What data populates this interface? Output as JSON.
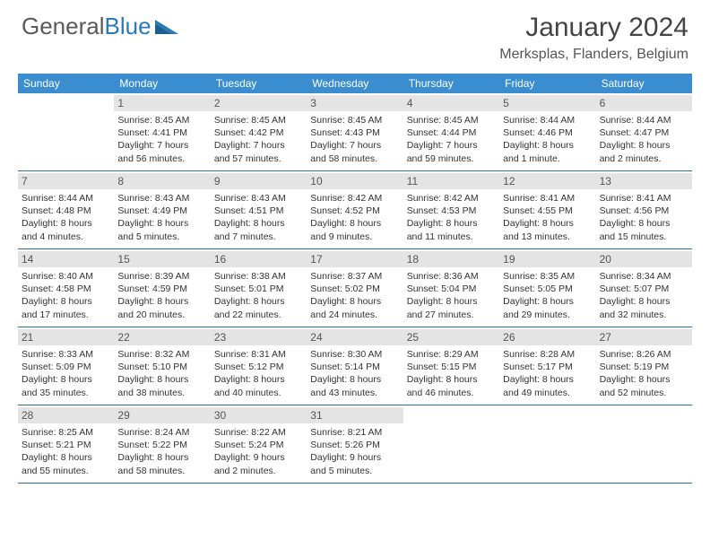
{
  "logo": {
    "text1": "General",
    "text2": "Blue"
  },
  "title": "January 2024",
  "location": "Merksplas, Flanders, Belgium",
  "header_bg": "#3a8dcf",
  "daynum_bg": "#e4e4e4",
  "divider_color": "#2d6fa6",
  "day_names": [
    "Sunday",
    "Monday",
    "Tuesday",
    "Wednesday",
    "Thursday",
    "Friday",
    "Saturday"
  ],
  "weeks": [
    [
      {
        "blank": true
      },
      {
        "n": "1",
        "sr": "Sunrise: 8:45 AM",
        "ss": "Sunset: 4:41 PM",
        "d1": "Daylight: 7 hours",
        "d2": "and 56 minutes."
      },
      {
        "n": "2",
        "sr": "Sunrise: 8:45 AM",
        "ss": "Sunset: 4:42 PM",
        "d1": "Daylight: 7 hours",
        "d2": "and 57 minutes."
      },
      {
        "n": "3",
        "sr": "Sunrise: 8:45 AM",
        "ss": "Sunset: 4:43 PM",
        "d1": "Daylight: 7 hours",
        "d2": "and 58 minutes."
      },
      {
        "n": "4",
        "sr": "Sunrise: 8:45 AM",
        "ss": "Sunset: 4:44 PM",
        "d1": "Daylight: 7 hours",
        "d2": "and 59 minutes."
      },
      {
        "n": "5",
        "sr": "Sunrise: 8:44 AM",
        "ss": "Sunset: 4:46 PM",
        "d1": "Daylight: 8 hours",
        "d2": "and 1 minute."
      },
      {
        "n": "6",
        "sr": "Sunrise: 8:44 AM",
        "ss": "Sunset: 4:47 PM",
        "d1": "Daylight: 8 hours",
        "d2": "and 2 minutes."
      }
    ],
    [
      {
        "n": "7",
        "sr": "Sunrise: 8:44 AM",
        "ss": "Sunset: 4:48 PM",
        "d1": "Daylight: 8 hours",
        "d2": "and 4 minutes."
      },
      {
        "n": "8",
        "sr": "Sunrise: 8:43 AM",
        "ss": "Sunset: 4:49 PM",
        "d1": "Daylight: 8 hours",
        "d2": "and 5 minutes."
      },
      {
        "n": "9",
        "sr": "Sunrise: 8:43 AM",
        "ss": "Sunset: 4:51 PM",
        "d1": "Daylight: 8 hours",
        "d2": "and 7 minutes."
      },
      {
        "n": "10",
        "sr": "Sunrise: 8:42 AM",
        "ss": "Sunset: 4:52 PM",
        "d1": "Daylight: 8 hours",
        "d2": "and 9 minutes."
      },
      {
        "n": "11",
        "sr": "Sunrise: 8:42 AM",
        "ss": "Sunset: 4:53 PM",
        "d1": "Daylight: 8 hours",
        "d2": "and 11 minutes."
      },
      {
        "n": "12",
        "sr": "Sunrise: 8:41 AM",
        "ss": "Sunset: 4:55 PM",
        "d1": "Daylight: 8 hours",
        "d2": "and 13 minutes."
      },
      {
        "n": "13",
        "sr": "Sunrise: 8:41 AM",
        "ss": "Sunset: 4:56 PM",
        "d1": "Daylight: 8 hours",
        "d2": "and 15 minutes."
      }
    ],
    [
      {
        "n": "14",
        "sr": "Sunrise: 8:40 AM",
        "ss": "Sunset: 4:58 PM",
        "d1": "Daylight: 8 hours",
        "d2": "and 17 minutes."
      },
      {
        "n": "15",
        "sr": "Sunrise: 8:39 AM",
        "ss": "Sunset: 4:59 PM",
        "d1": "Daylight: 8 hours",
        "d2": "and 20 minutes."
      },
      {
        "n": "16",
        "sr": "Sunrise: 8:38 AM",
        "ss": "Sunset: 5:01 PM",
        "d1": "Daylight: 8 hours",
        "d2": "and 22 minutes."
      },
      {
        "n": "17",
        "sr": "Sunrise: 8:37 AM",
        "ss": "Sunset: 5:02 PM",
        "d1": "Daylight: 8 hours",
        "d2": "and 24 minutes."
      },
      {
        "n": "18",
        "sr": "Sunrise: 8:36 AM",
        "ss": "Sunset: 5:04 PM",
        "d1": "Daylight: 8 hours",
        "d2": "and 27 minutes."
      },
      {
        "n": "19",
        "sr": "Sunrise: 8:35 AM",
        "ss": "Sunset: 5:05 PM",
        "d1": "Daylight: 8 hours",
        "d2": "and 29 minutes."
      },
      {
        "n": "20",
        "sr": "Sunrise: 8:34 AM",
        "ss": "Sunset: 5:07 PM",
        "d1": "Daylight: 8 hours",
        "d2": "and 32 minutes."
      }
    ],
    [
      {
        "n": "21",
        "sr": "Sunrise: 8:33 AM",
        "ss": "Sunset: 5:09 PM",
        "d1": "Daylight: 8 hours",
        "d2": "and 35 minutes."
      },
      {
        "n": "22",
        "sr": "Sunrise: 8:32 AM",
        "ss": "Sunset: 5:10 PM",
        "d1": "Daylight: 8 hours",
        "d2": "and 38 minutes."
      },
      {
        "n": "23",
        "sr": "Sunrise: 8:31 AM",
        "ss": "Sunset: 5:12 PM",
        "d1": "Daylight: 8 hours",
        "d2": "and 40 minutes."
      },
      {
        "n": "24",
        "sr": "Sunrise: 8:30 AM",
        "ss": "Sunset: 5:14 PM",
        "d1": "Daylight: 8 hours",
        "d2": "and 43 minutes."
      },
      {
        "n": "25",
        "sr": "Sunrise: 8:29 AM",
        "ss": "Sunset: 5:15 PM",
        "d1": "Daylight: 8 hours",
        "d2": "and 46 minutes."
      },
      {
        "n": "26",
        "sr": "Sunrise: 8:28 AM",
        "ss": "Sunset: 5:17 PM",
        "d1": "Daylight: 8 hours",
        "d2": "and 49 minutes."
      },
      {
        "n": "27",
        "sr": "Sunrise: 8:26 AM",
        "ss": "Sunset: 5:19 PM",
        "d1": "Daylight: 8 hours",
        "d2": "and 52 minutes."
      }
    ],
    [
      {
        "n": "28",
        "sr": "Sunrise: 8:25 AM",
        "ss": "Sunset: 5:21 PM",
        "d1": "Daylight: 8 hours",
        "d2": "and 55 minutes."
      },
      {
        "n": "29",
        "sr": "Sunrise: 8:24 AM",
        "ss": "Sunset: 5:22 PM",
        "d1": "Daylight: 8 hours",
        "d2": "and 58 minutes."
      },
      {
        "n": "30",
        "sr": "Sunrise: 8:22 AM",
        "ss": "Sunset: 5:24 PM",
        "d1": "Daylight: 9 hours",
        "d2": "and 2 minutes."
      },
      {
        "n": "31",
        "sr": "Sunrise: 8:21 AM",
        "ss": "Sunset: 5:26 PM",
        "d1": "Daylight: 9 hours",
        "d2": "and 5 minutes."
      },
      {
        "blank": true
      },
      {
        "blank": true
      },
      {
        "blank": true
      }
    ]
  ]
}
